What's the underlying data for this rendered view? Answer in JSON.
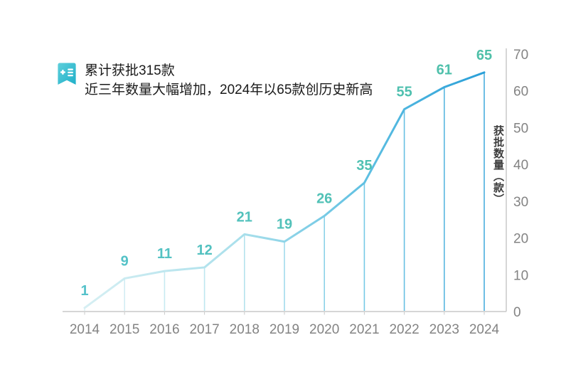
{
  "annotation": {
    "title": "累计获批315款",
    "subtitle": "近三年数量大幅增加，2024年以65款创历史新高",
    "icon": "medical-list-badge-icon"
  },
  "chart_data": {
    "type": "line",
    "categories": [
      "2014",
      "2015",
      "2016",
      "2017",
      "2018",
      "2019",
      "2020",
      "2021",
      "2022",
      "2023",
      "2024"
    ],
    "values": [
      1,
      9,
      11,
      12,
      21,
      19,
      26,
      35,
      55,
      61,
      65
    ],
    "title": "",
    "xlabel": "",
    "ylabel": "获批数量（款）",
    "y_ticks": [
      0,
      10,
      20,
      30,
      40,
      50,
      60,
      70
    ],
    "ylim": [
      0,
      70
    ],
    "grid": false,
    "legend": "none",
    "y_axis_side": "right",
    "data_labels_visible": true,
    "drop_lines_visible": true,
    "colors": {
      "line_gradient": [
        "#d6eff3",
        "#a8dfeb",
        "#5fc0e2",
        "#2a9fd8"
      ],
      "label_gradient": [
        "#55c2ca",
        "#4ec0a8"
      ],
      "axis": "#c9c9c9",
      "tick_text": "#838383",
      "annotation_text": "#1a1a1a",
      "icon_gradient": [
        "#5ecfdb",
        "#1fb0c9"
      ]
    }
  }
}
